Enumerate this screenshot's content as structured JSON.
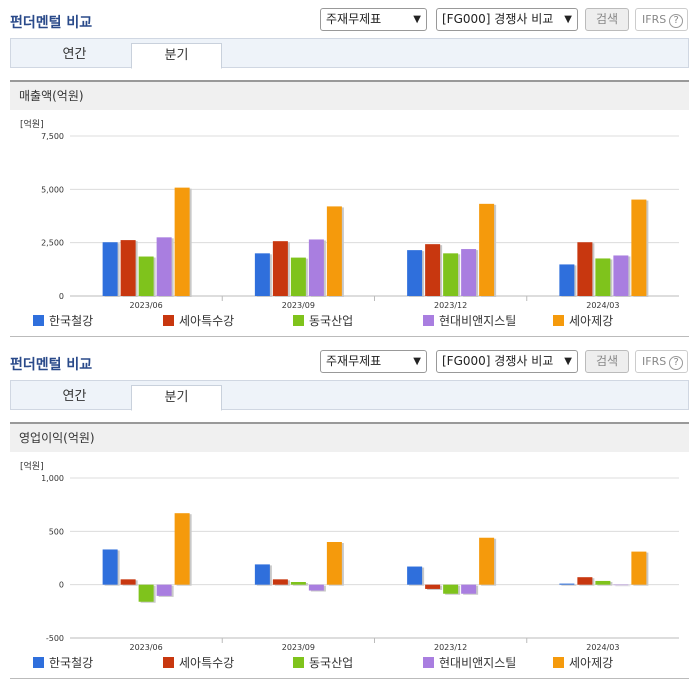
{
  "sections": [
    {
      "title": "펀더멘털 비교",
      "select1": "주재무제표",
      "select2": "[FG000] 경쟁사 비교",
      "search_label": "검색",
      "ifrs_label": "IFRS",
      "tabs": [
        "연간",
        "분기"
      ],
      "active_tab": "분기",
      "panel_title": "매출액(억원)",
      "unit": "[억원]"
    },
    {
      "title": "펀더멘털 비교",
      "select1": "주재무제표",
      "select2": "[FG000] 경쟁사 비교",
      "search_label": "검색",
      "ifrs_label": "IFRS",
      "tabs": [
        "연간",
        "분기"
      ],
      "active_tab": "분기",
      "panel_title": "영업이익(억원)",
      "unit": "[억원]"
    }
  ],
  "legend": [
    {
      "name": "한국철강",
      "color": "#2f6fdc"
    },
    {
      "name": "세아특수강",
      "color": "#c8370f"
    },
    {
      "name": "동국산업",
      "color": "#7fc31c"
    },
    {
      "name": "현대비앤지스틸",
      "color": "#a97ee0"
    },
    {
      "name": "세아제강",
      "color": "#f59a0c"
    }
  ],
  "chart_data": [
    {
      "type": "bar",
      "title": "매출액(억원)",
      "ylabel": "[억원]",
      "categories": [
        "2023/06",
        "2023/09",
        "2023/12",
        "2024/03"
      ],
      "ylim": [
        0,
        7500
      ],
      "yticks": [
        "0",
        "2,500",
        "5,000",
        "7,500"
      ],
      "ytick_values": [
        0,
        2500,
        5000,
        7500
      ],
      "series": [
        {
          "name": "한국철강",
          "values": [
            2520,
            2000,
            2150,
            1480
          ]
        },
        {
          "name": "세아특수강",
          "values": [
            2620,
            2570,
            2430,
            2520
          ]
        },
        {
          "name": "동국산업",
          "values": [
            1850,
            1800,
            2000,
            1760
          ]
        },
        {
          "name": "현대비앤지스틸",
          "values": [
            2750,
            2650,
            2200,
            1900
          ]
        },
        {
          "name": "세아제강",
          "values": [
            5080,
            4200,
            4320,
            4520
          ]
        }
      ]
    },
    {
      "type": "bar",
      "title": "영업이익(억원)",
      "ylabel": "[억원]",
      "categories": [
        "2023/06",
        "2023/09",
        "2023/12",
        "2024/03"
      ],
      "ylim": [
        -500,
        1000
      ],
      "yticks": [
        "-500",
        "0",
        "500",
        "1,000"
      ],
      "ytick_values": [
        -500,
        0,
        500,
        1000
      ],
      "series": [
        {
          "name": "한국철강",
          "values": [
            330,
            190,
            170,
            10
          ]
        },
        {
          "name": "세아특수강",
          "values": [
            50,
            50,
            -40,
            70
          ]
        },
        {
          "name": "동국산업",
          "values": [
            -160,
            25,
            -85,
            35
          ]
        },
        {
          "name": "현대비앤지스틸",
          "values": [
            -105,
            -55,
            -85,
            0
          ]
        },
        {
          "name": "세아제강",
          "values": [
            670,
            400,
            440,
            310
          ]
        }
      ]
    }
  ]
}
